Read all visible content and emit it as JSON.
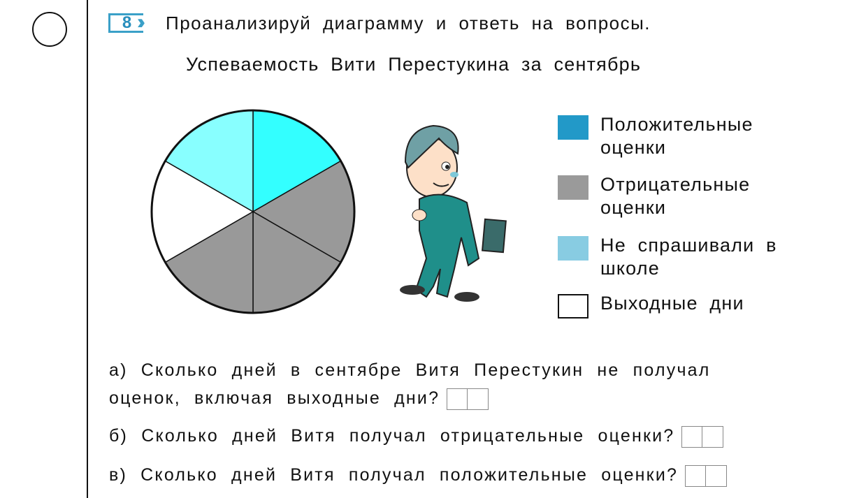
{
  "task": {
    "number": "8",
    "instruction": "Проанализируй диаграмму и ответь на вопросы."
  },
  "chart_data": {
    "type": "pie",
    "title": "Успеваемость Вити Перестукина за сентябрь",
    "slices": [
      {
        "value": 1,
        "color": "#33ffff"
      },
      {
        "value": 1,
        "color": "#999999"
      },
      {
        "value": 1,
        "color": "#999999"
      },
      {
        "value": 1,
        "color": "#999999"
      },
      {
        "value": 1,
        "color": "#ffffff"
      },
      {
        "value": 1,
        "color": "#88ffff"
      }
    ],
    "start": "12 o'clock, clockwise",
    "legend_position": "right",
    "legend": [
      {
        "label": "Положительные оценки",
        "color": "#2299c8"
      },
      {
        "label": "Отрицательные оценки",
        "color": "#9a9a9a"
      },
      {
        "label": "Не спрашивали в школе",
        "color": "#88cce2"
      },
      {
        "label": "Выходные дни",
        "color": "#ffffff"
      }
    ]
  },
  "questions": [
    {
      "text_line1": "а) Сколько дней в сентябре Витя Перестукин не получал",
      "text_line2": "оценок, включая выходные дни?"
    },
    {
      "text": "б) Сколько дней Витя получал отрицательные оценки?"
    },
    {
      "text": "в) Сколько дней Витя получал положительные оценки?"
    }
  ]
}
